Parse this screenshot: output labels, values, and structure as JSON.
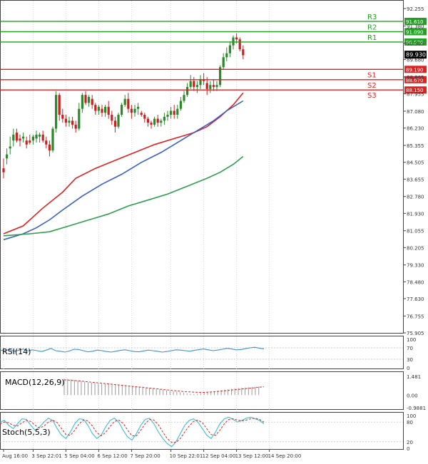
{
  "chart_data": [
    {
      "type": "candlestick",
      "price_axis": {
        "range": [
          75.905,
          92.255
        ],
        "ticks": [
          "92.255",
          "91.380",
          "90.505",
          "89.680",
          "88.805",
          "87.955",
          "87.080",
          "86.230",
          "85.355",
          "84.505",
          "83.655",
          "82.780",
          "81.930",
          "81.055",
          "80.205",
          "79.330",
          "78.480",
          "77.630",
          "76.755",
          "75.905"
        ],
        "current_price": "89.930"
      },
      "time_axis": {
        "labels": [
          "Aug 16:00",
          "3 Sep 22:01",
          "5 Sep 04:00",
          "6 Sep 12:00",
          "7 Sep 20:00",
          "10 Sep 22:01",
          "12 Sep 04:00",
          "13 Sep 12:00",
          "14 Sep 20:00"
        ],
        "label_bars": [
          0,
          9,
          19,
          29,
          39,
          51,
          61,
          71,
          81
        ]
      },
      "levels": [
        {
          "name": "R3",
          "value": 91.61,
          "label": "91.610",
          "color": "#22a022"
        },
        {
          "name": "R2",
          "value": 91.09,
          "label": "91.090",
          "color": "#22a022"
        },
        {
          "name": "R1",
          "value": 90.57,
          "label": "90.570",
          "color": "#22a022"
        },
        {
          "name": "S1",
          "value": 89.19,
          "label": "89.190",
          "color": "#dd2222"
        },
        {
          "name": "S2",
          "value": 88.67,
          "label": "88.670",
          "color": "#dd2222"
        },
        {
          "name": "S3",
          "value": 88.15,
          "label": "88.150",
          "color": "#dd2222"
        }
      ],
      "candles": [
        [
          84.2,
          84.7,
          84.0,
          83.7
        ],
        [
          84.7,
          85.2,
          84.9,
          84.4
        ],
        [
          85.2,
          85.8,
          85.3,
          84.9
        ],
        [
          85.6,
          86.2,
          85.9,
          85.3
        ],
        [
          86.0,
          86.2,
          85.6,
          85.5
        ],
        [
          85.7,
          85.9,
          85.6,
          85.3
        ],
        [
          85.7,
          86.0,
          85.8,
          85.5
        ],
        [
          85.6,
          85.8,
          85.4,
          85.2
        ],
        [
          85.6,
          85.9,
          85.5,
          85.4
        ],
        [
          85.6,
          85.9,
          85.8,
          85.4
        ],
        [
          85.7,
          86.1,
          85.9,
          85.5
        ],
        [
          85.8,
          86.0,
          85.9,
          85.5
        ],
        [
          85.9,
          86.1,
          85.6,
          85.5
        ],
        [
          85.6,
          85.8,
          85.4,
          85.2
        ],
        [
          85.4,
          85.6,
          85.1,
          84.8
        ],
        [
          85.1,
          86.3,
          86.2,
          85.0
        ],
        [
          86.2,
          88.1,
          87.9,
          86.0
        ],
        [
          87.9,
          88.0,
          86.9,
          86.6
        ],
        [
          86.9,
          87.2,
          86.7,
          86.5
        ],
        [
          86.7,
          86.9,
          86.5,
          86.3
        ],
        [
          86.5,
          86.8,
          86.6,
          86.3
        ],
        [
          86.6,
          86.8,
          86.4,
          86.2
        ],
        [
          86.4,
          86.6,
          86.2,
          86.0
        ],
        [
          86.2,
          87.5,
          87.2,
          86.1
        ],
        [
          87.2,
          88.0,
          87.9,
          87.0
        ],
        [
          87.9,
          88.1,
          87.5,
          87.4
        ],
        [
          87.5,
          87.9,
          87.8,
          87.3
        ],
        [
          87.7,
          87.9,
          87.4,
          87.2
        ],
        [
          87.4,
          87.5,
          87.1,
          86.9
        ],
        [
          87.1,
          87.4,
          87.3,
          86.9
        ],
        [
          87.2,
          87.4,
          87.0,
          86.8
        ],
        [
          87.0,
          87.4,
          87.3,
          86.8
        ],
        [
          87.3,
          87.6,
          86.9,
          86.7
        ],
        [
          86.9,
          87.1,
          86.6,
          86.4
        ],
        [
          86.6,
          86.8,
          86.3,
          86.0
        ],
        [
          86.3,
          87.0,
          86.9,
          86.2
        ],
        [
          86.9,
          87.5,
          87.4,
          86.8
        ],
        [
          87.4,
          87.9,
          87.7,
          87.3
        ],
        [
          87.7,
          88.0,
          87.2,
          87.0
        ],
        [
          87.2,
          87.4,
          87.0,
          86.7
        ],
        [
          87.0,
          87.4,
          87.2,
          86.8
        ],
        [
          87.2,
          87.5,
          87.3,
          86.9
        ],
        [
          87.0,
          87.1,
          86.9,
          86.8
        ],
        [
          86.9,
          87.0,
          86.7,
          86.5
        ],
        [
          86.7,
          86.8,
          86.5,
          86.3
        ],
        [
          86.5,
          86.6,
          86.4,
          86.2
        ],
        [
          86.4,
          86.8,
          86.7,
          86.3
        ],
        [
          86.7,
          86.9,
          86.5,
          86.3
        ],
        [
          86.5,
          86.7,
          86.6,
          86.3
        ],
        [
          86.6,
          87.0,
          86.8,
          86.4
        ],
        [
          86.8,
          87.1,
          86.9,
          86.6
        ],
        [
          86.9,
          87.3,
          87.1,
          86.7
        ],
        [
          87.1,
          87.4,
          86.9,
          86.7
        ],
        [
          86.9,
          87.4,
          87.2,
          86.7
        ],
        [
          87.2,
          87.8,
          87.6,
          87.1
        ],
        [
          87.6,
          88.1,
          87.9,
          87.5
        ],
        [
          87.9,
          88.5,
          88.3,
          87.8
        ],
        [
          88.3,
          88.9,
          88.6,
          88.2
        ],
        [
          88.6,
          88.8,
          88.3,
          88.1
        ],
        [
          88.3,
          88.6,
          88.4,
          88.0
        ],
        [
          88.4,
          88.9,
          88.7,
          88.2
        ],
        [
          88.7,
          89.0,
          88.6,
          88.4
        ],
        [
          88.5,
          88.8,
          88.2,
          87.9
        ],
        [
          88.2,
          88.6,
          88.4,
          88.0
        ],
        [
          88.4,
          88.7,
          88.3,
          88.1
        ],
        [
          88.3,
          88.6,
          88.4,
          88.1
        ],
        [
          88.4,
          89.4,
          89.3,
          88.3
        ],
        [
          89.3,
          90.0,
          89.8,
          89.2
        ],
        [
          89.8,
          90.3,
          90.0,
          89.6
        ],
        [
          90.0,
          90.6,
          90.4,
          89.8
        ],
        [
          90.4,
          90.9,
          90.8,
          90.2
        ],
        [
          90.8,
          91.0,
          90.7,
          90.5
        ],
        [
          90.7,
          90.8,
          90.2,
          90.1
        ],
        [
          90.2,
          90.4,
          89.9,
          89.7
        ]
      ],
      "moving_averages": [
        {
          "color": "#dd2222",
          "points": [
            [
              0,
              80.9
            ],
            [
              6,
              81.3
            ],
            [
              12,
              82.2
            ],
            [
              18,
              83.0
            ],
            [
              22,
              83.7
            ],
            [
              28,
              84.2
            ],
            [
              34,
              84.6
            ],
            [
              40,
              85.0
            ],
            [
              46,
              85.4
            ],
            [
              52,
              85.7
            ],
            [
              58,
              86.0
            ],
            [
              62,
              86.3
            ],
            [
              66,
              86.8
            ],
            [
              70,
              87.4
            ],
            [
              73,
              88.0
            ]
          ]
        },
        {
          "color": "#3b5fc7",
          "points": [
            [
              0,
              80.6
            ],
            [
              6,
              80.9
            ],
            [
              10,
              81.2
            ],
            [
              14,
              81.6
            ],
            [
              18,
              82.1
            ],
            [
              24,
              82.8
            ],
            [
              30,
              83.4
            ],
            [
              36,
              83.9
            ],
            [
              42,
              84.5
            ],
            [
              48,
              85.0
            ],
            [
              54,
              85.6
            ],
            [
              60,
              86.2
            ],
            [
              64,
              86.6
            ],
            [
              68,
              87.1
            ],
            [
              73,
              87.6
            ]
          ]
        },
        {
          "color": "#2e9e4e",
          "points": [
            [
              0,
              80.8
            ],
            [
              8,
              80.9
            ],
            [
              14,
              81.0
            ],
            [
              20,
              81.3
            ],
            [
              26,
              81.6
            ],
            [
              32,
              81.9
            ],
            [
              38,
              82.3
            ],
            [
              44,
              82.6
            ],
            [
              50,
              82.9
            ],
            [
              56,
              83.3
            ],
            [
              62,
              83.7
            ],
            [
              66,
              84.0
            ],
            [
              70,
              84.4
            ],
            [
              73,
              84.8
            ]
          ]
        }
      ]
    },
    {
      "type": "line",
      "label": "RSI(14)",
      "ticks": [
        "100",
        "70",
        "30",
        "0"
      ],
      "range": [
        0,
        100
      ],
      "color": "#3b8fdf",
      "values": [
        62,
        60,
        64,
        58,
        61,
        66,
        59,
        63,
        60,
        57,
        62,
        68,
        60,
        58,
        55,
        59,
        65,
        64,
        60,
        56,
        58,
        62,
        60,
        57,
        55,
        58,
        61,
        63,
        60,
        57,
        56,
        59,
        62,
        60,
        58,
        55,
        57,
        60,
        63,
        62,
        60,
        58,
        61,
        64,
        66,
        63,
        60,
        62,
        65,
        68,
        66,
        63,
        64,
        67,
        70,
        72,
        69,
        66
      ]
    },
    {
      "type": "bar",
      "label": "MACD(12,26,9)",
      "ticks": [
        "1.481",
        "0.00",
        "-0.9881"
      ],
      "range": [
        -0.9881,
        1.481
      ],
      "bar_color": "#999999",
      "signal_color": "#dd2222",
      "values": [
        1.3,
        1.28,
        1.25,
        1.2,
        1.15,
        1.1,
        1.06,
        1.02,
        0.98,
        0.95,
        0.92,
        0.9,
        0.88,
        0.86,
        0.84,
        0.82,
        0.8,
        0.78,
        0.76,
        0.74,
        0.72,
        0.7,
        0.68,
        0.66,
        0.62,
        0.58,
        0.54,
        0.5,
        0.46,
        0.42,
        0.38,
        0.34,
        0.3,
        0.26,
        0.22,
        0.18,
        0.14,
        0.1,
        0.08,
        0.1,
        0.14,
        0.18,
        0.22,
        0.26,
        0.3,
        0.34,
        0.38,
        0.42,
        0.46,
        0.5,
        0.54,
        0.56,
        0.58,
        0.6,
        0.62,
        0.64,
        0.66,
        0.68
      ],
      "signal": [
        1.2,
        1.18,
        1.15,
        1.12,
        1.08,
        1.04,
        1.0,
        0.96,
        0.92,
        0.88,
        0.84,
        0.8,
        0.76,
        0.72,
        0.68,
        0.64,
        0.6,
        0.56,
        0.52,
        0.48,
        0.44,
        0.4,
        0.36,
        0.32,
        0.28,
        0.26,
        0.24,
        0.22,
        0.22,
        0.24,
        0.27,
        0.3,
        0.34,
        0.38,
        0.42,
        0.46,
        0.5,
        0.54,
        0.58,
        0.62,
        0.66
      ]
    },
    {
      "type": "line",
      "label": "Stoch(5,5,3)",
      "ticks": [
        "100",
        "80",
        "20",
        "0"
      ],
      "range": [
        0,
        100
      ],
      "main_color": "#3bbfd0",
      "signal_color": "#dd2222",
      "k": [
        80,
        85,
        70,
        60,
        75,
        90,
        88,
        70,
        55,
        65,
        80,
        92,
        85,
        60,
        40,
        30,
        50,
        75,
        90,
        88,
        70,
        45,
        30,
        40,
        65,
        85,
        92,
        80,
        55,
        35,
        25,
        45,
        70,
        88,
        92,
        75,
        50,
        30,
        15,
        5,
        20,
        45,
        70,
        85,
        90,
        80,
        60,
        40,
        30,
        50,
        75,
        90,
        95,
        88,
        80,
        85,
        92,
        95,
        90,
        85,
        75
      ],
      "d": [
        75,
        80,
        78,
        70,
        68,
        78,
        85,
        82,
        70,
        62,
        68,
        80,
        86,
        78,
        60,
        42,
        40,
        55,
        75,
        86,
        84,
        68,
        48,
        38,
        48,
        66,
        82,
        86,
        76,
        56,
        38,
        38,
        55,
        75,
        88,
        86,
        72,
        50,
        30,
        18,
        18,
        30,
        50,
        68,
        82,
        86,
        78,
        60,
        42,
        40,
        55,
        75,
        88,
        90,
        86,
        84,
        86,
        90,
        92,
        88,
        80
      ]
    }
  ]
}
